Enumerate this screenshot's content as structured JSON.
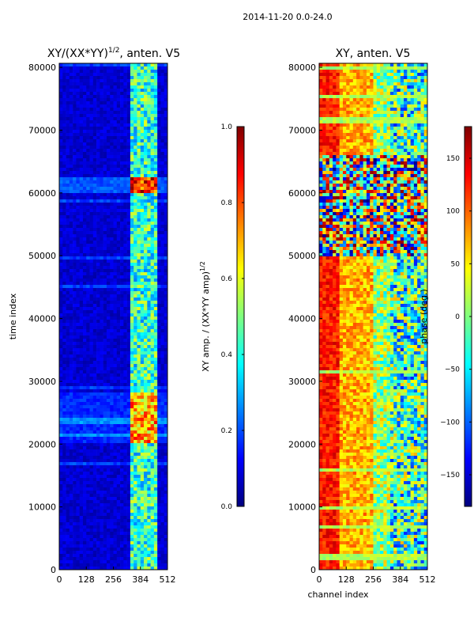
{
  "figure": {
    "suptitle": "2014-11-20 0.0-24.0"
  },
  "colors": {
    "jet_stops": [
      "#00007f",
      "#0000ff",
      "#007fff",
      "#00ffff",
      "#7fff7f",
      "#ffff00",
      "#ff7f00",
      "#ff0000",
      "#7f0000"
    ]
  },
  "chart_data": [
    {
      "type": "heatmap",
      "name": "amplitude",
      "title_main": "XY/(XX*YY)",
      "title_sup": "1/2",
      "title_rest": ", anten. V5",
      "xlabel": "",
      "ylabel": "time index",
      "xlim": [
        0,
        512
      ],
      "ylim": [
        0,
        80640
      ],
      "xticks": [
        0,
        128,
        256,
        384,
        512
      ],
      "xtick_labels": [
        "0",
        "128",
        "256",
        "384",
        "512"
      ],
      "yticks": [
        0,
        10000,
        20000,
        30000,
        40000,
        50000,
        60000,
        70000,
        80000
      ],
      "ytick_labels": [
        "0",
        "10000",
        "20000",
        "30000",
        "40000",
        "50000",
        "60000",
        "70000",
        "80000"
      ],
      "colorbar": {
        "label_main": "XY amp. / (XX*YY amp)",
        "label_sup": "1/2",
        "range": [
          0.0,
          1.0
        ],
        "ticks": [
          0.0,
          0.2,
          0.4,
          0.6,
          0.8,
          1.0
        ],
        "tick_labels": [
          "0.0",
          "0.2",
          "0.4",
          "0.6",
          "0.8",
          "1.0"
        ]
      },
      "description_bands": [
        {
          "t_from": 60000,
          "t_to": 62500,
          "amp": 0.85
        },
        {
          "t_from": 20000,
          "t_to": 28000,
          "amp": 0.55
        }
      ]
    },
    {
      "type": "heatmap",
      "name": "phase",
      "title": "XY, anten. V5",
      "xlabel": "channel index",
      "ylabel": "",
      "xlim": [
        0,
        512
      ],
      "ylim": [
        0,
        80640
      ],
      "xticks": [
        0,
        128,
        256,
        384,
        512
      ],
      "xtick_labels": [
        "0",
        "128",
        "256",
        "384",
        "512"
      ],
      "yticks": [
        0,
        10000,
        20000,
        30000,
        40000,
        50000,
        60000,
        70000,
        80000
      ],
      "ytick_labels": [
        "0",
        "10000",
        "20000",
        "30000",
        "40000",
        "50000",
        "60000",
        "70000",
        "80000"
      ],
      "colorbar": {
        "label": "phase (deg.)",
        "range": [
          -180,
          180
        ],
        "ticks": [
          -150,
          -100,
          -50,
          0,
          50,
          100,
          150
        ],
        "tick_labels": [
          "−150",
          "−100",
          "−50",
          "0",
          "50",
          "100",
          "150"
        ]
      }
    }
  ]
}
